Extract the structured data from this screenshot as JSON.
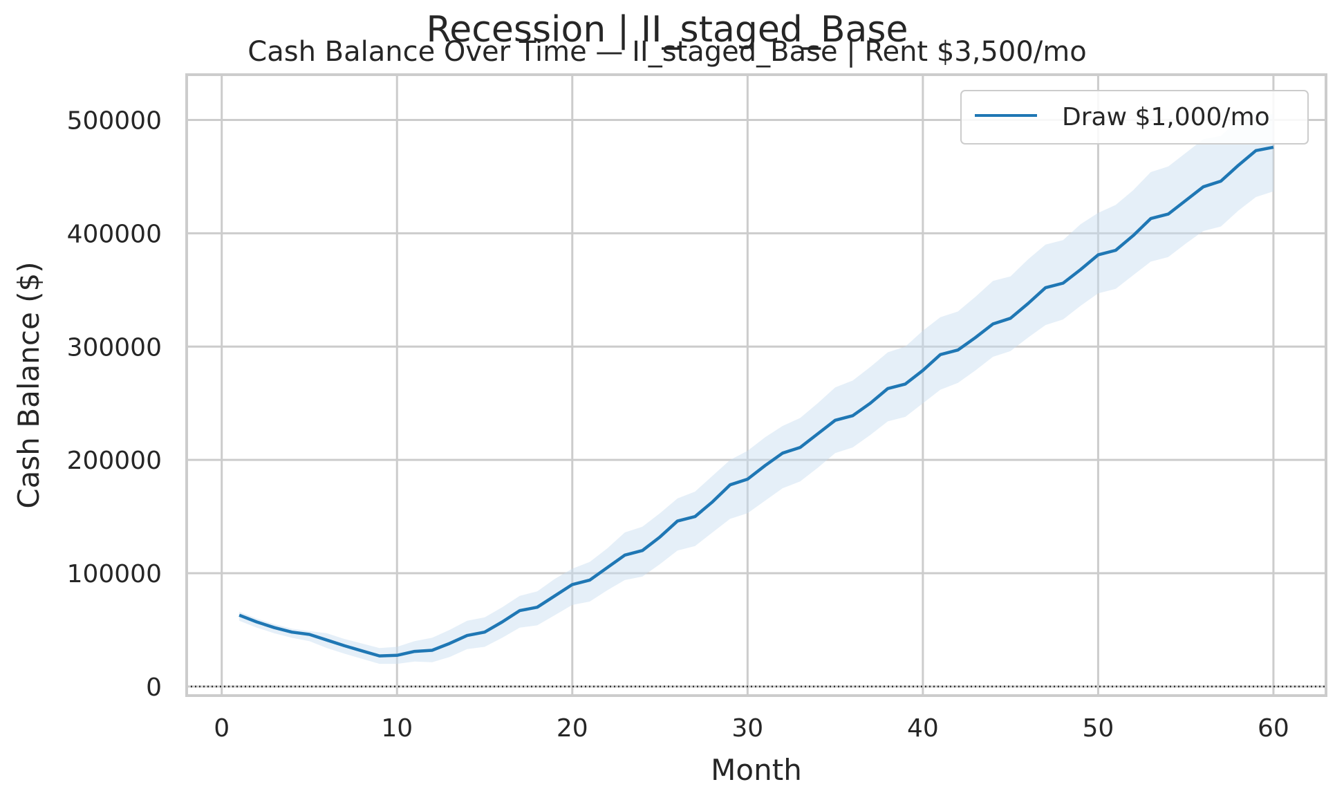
{
  "suptitle": "Recession | II_staged_Base",
  "title": "Cash Balance Over Time — II_staged_Base | Rent $3,500/mo",
  "chart_data": {
    "type": "line",
    "xlabel": "Month",
    "ylabel": "Cash Balance ($)",
    "xlim": [
      -2,
      63
    ],
    "ylim": [
      -8000,
      540000
    ],
    "xticks": [
      0,
      10,
      20,
      30,
      40,
      50,
      60
    ],
    "yticks": [
      0,
      100000,
      200000,
      300000,
      400000,
      500000
    ],
    "grid": true,
    "legend_position": "top-right",
    "reference_line": {
      "y": 0,
      "style": "dotted",
      "color": "#333333"
    },
    "colors": {
      "series": "#1f77b4",
      "band": "#c6dbef",
      "grid": "#cccccc",
      "axes": "#cccccc"
    },
    "series": [
      {
        "name": "Draw $1,000/mo",
        "x": [
          1,
          2,
          3,
          4,
          5,
          6,
          7,
          8,
          9,
          10,
          11,
          12,
          13,
          14,
          15,
          16,
          17,
          18,
          19,
          20,
          21,
          22,
          23,
          24,
          25,
          26,
          27,
          28,
          29,
          30,
          31,
          32,
          33,
          34,
          35,
          36,
          37,
          38,
          39,
          40,
          41,
          42,
          43,
          44,
          45,
          46,
          47,
          48,
          49,
          50,
          51,
          52,
          53,
          54,
          55,
          56,
          57,
          58,
          59,
          60
        ],
        "y": [
          63000,
          57000,
          52000,
          48000,
          46000,
          41000,
          36000,
          31500,
          27000,
          27500,
          31000,
          32000,
          38000,
          45000,
          48000,
          57000,
          67000,
          70000,
          80000,
          90000,
          94000,
          105000,
          116000,
          120000,
          132000,
          146000,
          150000,
          163000,
          178000,
          183000,
          195000,
          206000,
          211000,
          223000,
          235000,
          239000,
          250000,
          263000,
          267000,
          279000,
          293000,
          297000,
          308000,
          320000,
          325000,
          338000,
          352000,
          356000,
          368000,
          381000,
          385000,
          398000,
          413000,
          417000,
          429000,
          441000,
          446000,
          460000,
          473000,
          476000
        ],
        "lower": [
          58000,
          52000,
          47000,
          43000,
          40000,
          34000,
          29000,
          24500,
          20000,
          20000,
          22000,
          21500,
          26000,
          33000,
          35000,
          43000,
          52000,
          54000,
          63000,
          72000,
          75000,
          85000,
          94000,
          97000,
          108000,
          120000,
          124000,
          136000,
          148000,
          153000,
          164000,
          175000,
          181000,
          193000,
          206000,
          211000,
          222000,
          234000,
          238000,
          250000,
          262000,
          268000,
          279000,
          291000,
          296000,
          308000,
          319000,
          324000,
          336000,
          347000,
          351000,
          363000,
          375000,
          379000,
          391000,
          402000,
          406000,
          420000,
          432000,
          437000
        ],
        "upper": [
          66000,
          60000,
          55000,
          51000,
          49000,
          47000,
          42000,
          38000,
          34000,
          35000,
          40000,
          43000,
          50000,
          58000,
          61000,
          70000,
          80000,
          84000,
          95000,
          104000,
          110000,
          122000,
          136000,
          141000,
          153000,
          166000,
          172000,
          186000,
          200000,
          208000,
          220000,
          230000,
          237000,
          250000,
          264000,
          270000,
          282000,
          295000,
          300000,
          314000,
          326000,
          331000,
          344000,
          358000,
          362000,
          377000,
          390000,
          394000,
          408000,
          418000,
          425000,
          438000,
          454000,
          459000,
          471000,
          483000,
          486000,
          500000,
          505000,
          505000
        ]
      }
    ]
  }
}
